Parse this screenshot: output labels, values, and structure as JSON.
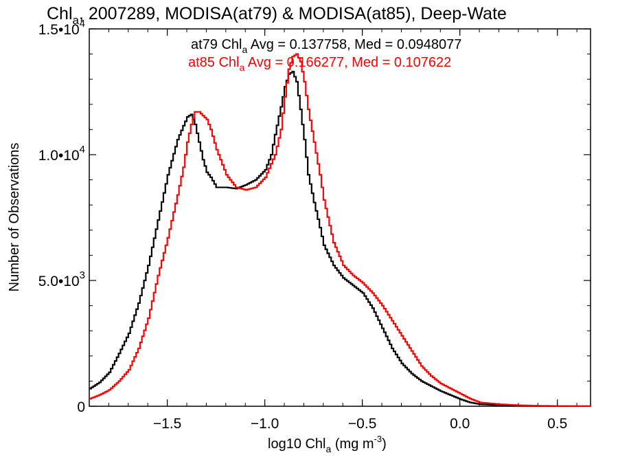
{
  "chart_data": {
    "type": "line",
    "title": "Chl",
    "title_sub": "a",
    "title_rest": ", 2007289, MODISA(at79) & MODISA(at85), Deep-Wate",
    "xlabel": "log10 Chl",
    "xlabel_sub": "a",
    "xlabel_units": " (mg m",
    "xlabel_units_sup": "-3",
    "xlabel_close": ")",
    "ylabel": "Number of Observations",
    "xlim": [
      -1.9,
      0.67
    ],
    "ylim": [
      0,
      15000
    ],
    "x_ticks": [
      {
        "value": -1.5,
        "label": "−1.5"
      },
      {
        "value": -1.0,
        "label": "−1.0"
      },
      {
        "value": -0.5,
        "label": "−0.5"
      },
      {
        "value": 0.0,
        "label": "0.0"
      },
      {
        "value": 0.5,
        "label": "0.5"
      }
    ],
    "y_ticks": [
      {
        "value": 0,
        "mant": "0",
        "sup": ""
      },
      {
        "value": 5000,
        "mant": "5.0•10",
        "sup": "3"
      },
      {
        "value": 10000,
        "mant": "1.0•10",
        "sup": "4"
      },
      {
        "value": 15000,
        "mant": "1.5•10",
        "sup": "4"
      }
    ],
    "series": [
      {
        "name": "at79",
        "color": "#000000",
        "stat_prefix": "at79 Chl",
        "stat_sub": "a",
        "stat_text": " Avg = 0.137758, Med = 0.0948077",
        "x": [
          -1.9,
          -1.85,
          -1.8,
          -1.75,
          -1.7,
          -1.65,
          -1.6,
          -1.55,
          -1.5,
          -1.45,
          -1.42,
          -1.4,
          -1.38,
          -1.36,
          -1.34,
          -1.32,
          -1.3,
          -1.28,
          -1.25,
          -1.2,
          -1.15,
          -1.1,
          -1.05,
          -1.0,
          -0.97,
          -0.95,
          -0.92,
          -0.9,
          -0.88,
          -0.86,
          -0.84,
          -0.82,
          -0.8,
          -0.78,
          -0.75,
          -0.72,
          -0.7,
          -0.65,
          -0.6,
          -0.55,
          -0.5,
          -0.45,
          -0.4,
          -0.35,
          -0.3,
          -0.25,
          -0.2,
          -0.1,
          0.0,
          0.05,
          0.1,
          0.2,
          0.3,
          0.4,
          0.5,
          0.6,
          0.67
        ],
        "y": [
          700,
          950,
          1350,
          2100,
          2900,
          4100,
          5600,
          7400,
          9200,
          10600,
          11150,
          11500,
          11600,
          11200,
          10500,
          9800,
          9300,
          9100,
          8700,
          8700,
          8650,
          8800,
          9000,
          9400,
          10000,
          10800,
          11900,
          12700,
          13200,
          13300,
          12900,
          11800,
          10600,
          9200,
          8100,
          7100,
          6400,
          5600,
          5100,
          4800,
          4500,
          3900,
          3100,
          2300,
          1700,
          1300,
          1000,
          600,
          280,
          150,
          80,
          40,
          20,
          10,
          5,
          3,
          2
        ]
      },
      {
        "name": "at85",
        "color": "#ff0000",
        "stat_prefix": "at85 Chl",
        "stat_sub": "a",
        "stat_text": " Avg = 0.166277, Med = 0.107622",
        "x": [
          -1.9,
          -1.85,
          -1.8,
          -1.75,
          -1.7,
          -1.65,
          -1.6,
          -1.55,
          -1.5,
          -1.45,
          -1.42,
          -1.4,
          -1.38,
          -1.36,
          -1.34,
          -1.32,
          -1.3,
          -1.28,
          -1.25,
          -1.2,
          -1.15,
          -1.1,
          -1.05,
          -1.0,
          -0.95,
          -0.92,
          -0.9,
          -0.88,
          -0.86,
          -0.84,
          -0.82,
          -0.8,
          -0.78,
          -0.75,
          -0.72,
          -0.7,
          -0.65,
          -0.6,
          -0.55,
          -0.5,
          -0.45,
          -0.4,
          -0.35,
          -0.3,
          -0.25,
          -0.2,
          -0.15,
          -0.1,
          -0.05,
          0.0,
          0.05,
          0.1,
          0.2,
          0.3,
          0.4,
          0.5,
          0.6,
          0.67
        ],
        "y": [
          300,
          450,
          650,
          1000,
          1450,
          2300,
          3500,
          5200,
          6700,
          8400,
          9500,
          10500,
          11200,
          11700,
          11700,
          11550,
          11400,
          11000,
          10200,
          9200,
          8700,
          8600,
          8700,
          9100,
          10000,
          11000,
          12300,
          13400,
          13900,
          14000,
          13700,
          12900,
          11800,
          10500,
          9200,
          8200,
          6500,
          5600,
          5200,
          4900,
          4500,
          4000,
          3400,
          2800,
          2200,
          1600,
          1200,
          900,
          700,
          500,
          300,
          150,
          80,
          40,
          20,
          10,
          5,
          3
        ]
      }
    ]
  }
}
